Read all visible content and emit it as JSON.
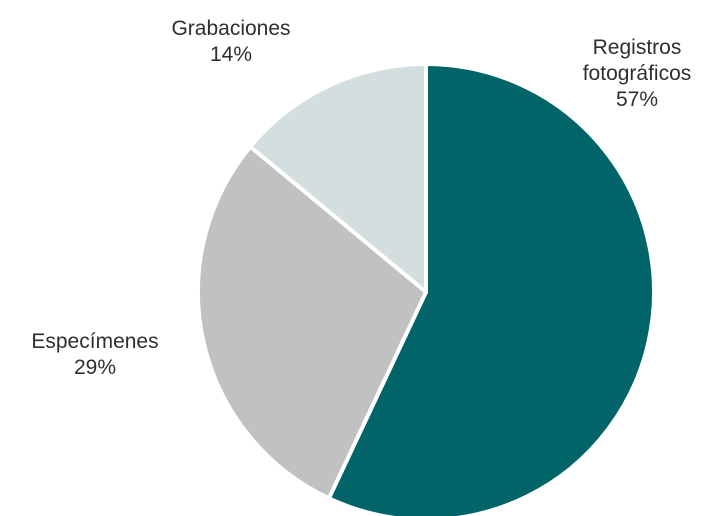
{
  "chart_data": {
    "type": "pie",
    "title": "",
    "slices": [
      {
        "label_lines": [
          "Registros",
          "fotográficos"
        ],
        "value": 57,
        "value_label": "57%",
        "color": "#006468"
      },
      {
        "label_lines": [
          "Especímenes"
        ],
        "value": 29,
        "value_label": "29%",
        "color": "#c0c1c0"
      },
      {
        "label_lines": [
          "Grabaciones"
        ],
        "value": 14,
        "value_label": "14%",
        "color": "#d2dfde"
      }
    ],
    "slice_border_color": "#ffffff",
    "legend": "none"
  }
}
